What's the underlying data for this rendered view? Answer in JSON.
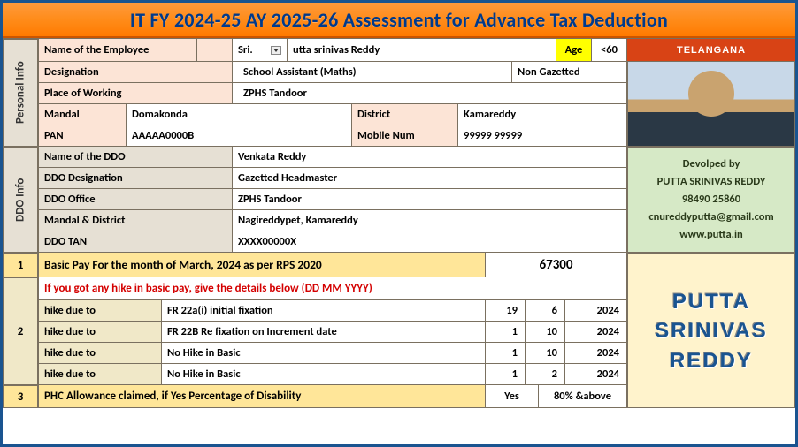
{
  "title": "IT FY 2024-25 AY 2025-26 Assessment for Advance Tax Deduction",
  "state_banner": "TELANGANA",
  "personal": {
    "section": "Personal Info",
    "name_label": "Name of the Employee",
    "prefix": "Sri.",
    "name": "utta srinivas Reddy",
    "age_label": "Age",
    "age_val": "<60",
    "designation_label": "Designation",
    "designation": "School Assistant (Maths)",
    "gazette": "Non Gazetted",
    "pow_label": "Place of Working",
    "pow": "ZPHS Tandoor",
    "mandal_label": "Mandal",
    "mandal": "Domakonda",
    "district_label": "District",
    "district": "Kamareddy",
    "pan_label": "PAN",
    "pan": "AAAAA0000B",
    "mobile_label": "Mobile Num",
    "mobile": "99999 99999"
  },
  "ddo": {
    "section": "DDO Info",
    "name_label": "Name of the DDO",
    "name": "Venkata Reddy",
    "desig_label": "DDO Designation",
    "desig": "Gazetted Headmaster",
    "office_label": "DDO Office",
    "office": "ZPHS Tandoor",
    "md_label": "Mandal & District",
    "md": "Nagireddypet, Kamareddy",
    "tan_label": "DDO TAN",
    "tan": "XXXX00000X"
  },
  "dev": {
    "heading": "Devolped by",
    "name": "PUTTA SRINIVAS REDDY",
    "phone": "98490 25860",
    "email": "cnureddyputta@gmail.com",
    "site": "www.putta.in"
  },
  "row1": {
    "num": "1",
    "label": "Basic Pay For the month of March, 2024 as per RPS 2020",
    "value": "67300"
  },
  "row2": {
    "num": "2",
    "header": "If you got any hike in basic pay, give the details below  (DD MM YYYY)",
    "hike_label": "hike due to",
    "hikes": [
      {
        "reason": "FR 22a(i) initial fixation",
        "dd": "19",
        "mm": "6",
        "yyyy": "2024"
      },
      {
        "reason": "FR 22B Re fixation on Increment date",
        "dd": "1",
        "mm": "10",
        "yyyy": "2024"
      },
      {
        "reason": "No Hike in Basic",
        "dd": "1",
        "mm": "10",
        "yyyy": "2024"
      },
      {
        "reason": "No Hike in Basic",
        "dd": "1",
        "mm": "2",
        "yyyy": "2024"
      }
    ]
  },
  "row3": {
    "num": "3",
    "label": "PHC Allowance claimed, if Yes Percentage of Disability",
    "yes": "Yes",
    "pct": "80% &above"
  },
  "brand": {
    "l1": "PUTTA",
    "l2": "SRINIVAS",
    "l3": "REDDY"
  },
  "colors": {
    "header_grad_top": "#ff9a3c",
    "header_grad_bottom": "#ff7a00",
    "title_text": "#003a8c",
    "peach": "#fce4d6",
    "beige": "#e6e0d4",
    "yellow_cell": "#ffe699",
    "cream": "#f0e8c8",
    "green_dev": "#d6e9c6",
    "brand_bg": "#fff3cc",
    "brand_text": "#1a5490",
    "red_text": "#d40000",
    "border": "#7a7060"
  }
}
